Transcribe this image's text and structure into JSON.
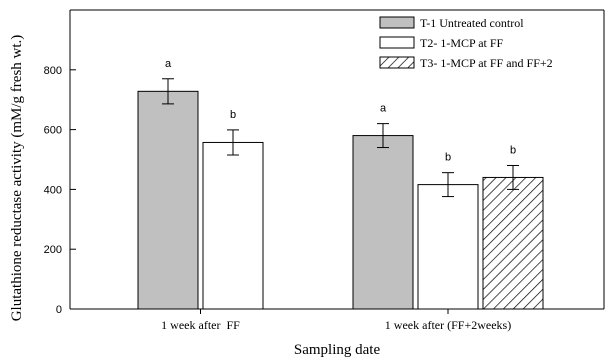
{
  "chart_data": {
    "type": "bar",
    "xlabel": "Sampling date",
    "ylabel": "Glutathione reductase activity (mM/g fresh wt.)",
    "ylim": [
      0,
      1000
    ],
    "yticks": [
      0,
      200,
      400,
      600,
      800
    ],
    "grid": false,
    "legend_position": "top-right",
    "categories": [
      "1 week after  FF",
      "1 week after (FF+2weeks)"
    ],
    "series": [
      {
        "name": "T-1 Untreated control",
        "fill": "#c0c0c0",
        "pattern": "solid",
        "values": [
          728,
          580
        ],
        "errors": [
          42,
          40
        ],
        "letters": [
          "a",
          "a"
        ]
      },
      {
        "name": "T2- 1-MCP at FF",
        "fill": "#ffffff",
        "pattern": "solid",
        "values": [
          557,
          416
        ],
        "errors": [
          42,
          40
        ],
        "letters": [
          "b",
          "b"
        ]
      },
      {
        "name": "T3- 1-MCP at FF and FF+2",
        "fill": "#ffffff",
        "pattern": "hatch",
        "values": [
          null,
          440
        ],
        "errors": [
          null,
          40
        ],
        "letters": [
          null,
          "b"
        ]
      }
    ]
  }
}
